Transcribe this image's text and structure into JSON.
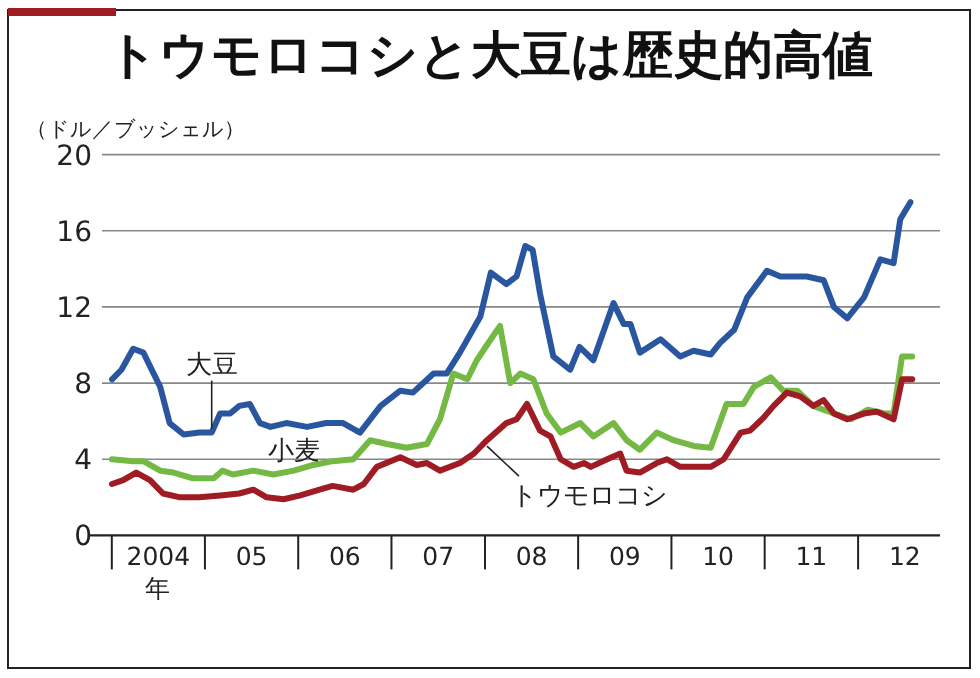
{
  "chart_data": {
    "type": "line",
    "title": "トウモロコシと大豆は歴史的高値",
    "ylabel": "（ドル／ブッシェル）",
    "xlabel": "年",
    "xlim": [
      "2004-01-01",
      "2012-11-16"
    ],
    "ylim": [
      0,
      20
    ],
    "yticks": [
      0,
      4,
      8,
      12,
      16,
      20
    ],
    "xticks": [
      {
        "value": "2004-07-01",
        "label": "2004"
      },
      {
        "value": "2005-07-01",
        "label": "05"
      },
      {
        "value": "2006-07-01",
        "label": "06"
      },
      {
        "value": "2007-07-01",
        "label": "07"
      },
      {
        "value": "2008-07-01",
        "label": "08"
      },
      {
        "value": "2009-07-01",
        "label": "09"
      },
      {
        "value": "2010-07-01",
        "label": "10"
      },
      {
        "value": "2011-07-01",
        "label": "11"
      },
      {
        "value": "2012-07-01",
        "label": "12"
      }
    ],
    "grid": "y",
    "legend": false,
    "marker": "none",
    "line_style": "solid",
    "series": [
      {
        "name": "大豆",
        "color": "#2a56a0",
        "x": [
          "2004-01-01",
          "2004-02-07",
          "2004-03-24",
          "2004-05-03",
          "2004-07-08",
          "2004-08-14",
          "2004-10-08",
          "2004-12-09",
          "2005-01-26",
          "2005-02-28",
          "2005-04-08",
          "2005-05-14",
          "2005-06-24",
          "2005-08-03",
          "2005-09-13",
          "2005-11-14",
          "2006-02-03",
          "2006-04-19",
          "2006-06-24",
          "2006-08-29",
          "2006-11-18",
          "2007-02-03",
          "2007-03-24",
          "2007-06-13",
          "2007-08-03",
          "2007-09-24",
          "2007-12-13",
          "2008-01-23",
          "2008-03-24",
          "2008-05-03",
          "2008-06-06",
          "2008-07-05",
          "2008-08-03",
          "2008-09-24",
          "2008-11-29",
          "2009-01-05",
          "2009-02-28",
          "2009-05-18",
          "2009-06-27",
          "2009-07-23",
          "2009-08-29",
          "2009-11-18",
          "2010-02-03",
          "2010-03-27",
          "2010-06-02",
          "2010-07-08",
          "2010-09-02",
          "2010-10-23",
          "2011-01-08",
          "2011-03-02",
          "2011-06-13",
          "2011-08-18",
          "2011-09-27",
          "2011-11-18",
          "2012-01-23",
          "2012-03-27",
          "2012-05-18",
          "2012-06-13",
          "2012-07-23"
        ],
        "values": [
          8.2,
          8.7,
          9.8,
          9.6,
          7.8,
          5.9,
          5.3,
          5.4,
          5.4,
          6.4,
          6.4,
          6.8,
          6.9,
          5.9,
          5.7,
          5.9,
          5.7,
          5.9,
          5.9,
          5.4,
          6.8,
          7.6,
          7.5,
          8.5,
          8.5,
          9.6,
          11.5,
          13.8,
          13.2,
          13.6,
          15.2,
          15.0,
          12.7,
          9.4,
          8.7,
          9.9,
          9.2,
          12.2,
          11.1,
          11.1,
          9.6,
          10.3,
          9.4,
          9.7,
          9.5,
          10.1,
          10.8,
          12.5,
          13.9,
          13.6,
          13.6,
          13.4,
          12.0,
          11.4,
          12.5,
          14.5,
          14.3,
          16.6,
          17.5
        ]
      },
      {
        "name": "小麦",
        "color": "#74b943",
        "x": [
          "2004-01-01",
          "2004-03-24",
          "2004-05-03",
          "2004-07-08",
          "2004-08-29",
          "2004-11-14",
          "2005-02-03",
          "2005-03-09",
          "2005-04-19",
          "2005-07-08",
          "2005-09-24",
          "2005-12-13",
          "2006-02-28",
          "2006-05-14",
          "2006-08-03",
          "2006-10-08",
          "2006-12-13",
          "2007-02-28",
          "2007-05-18",
          "2007-07-08",
          "2007-08-29",
          "2007-10-23",
          "2007-11-29",
          "2008-01-23",
          "2008-02-28",
          "2008-04-08",
          "2008-05-18",
          "2008-07-08",
          "2008-08-29",
          "2008-10-23",
          "2009-01-08",
          "2009-02-28",
          "2009-05-18",
          "2009-07-08",
          "2009-08-29",
          "2009-11-03",
          "2010-01-08",
          "2010-03-27",
          "2010-06-02",
          "2010-08-03",
          "2010-10-08",
          "2010-11-18",
          "2011-01-23",
          "2011-03-13",
          "2011-05-07",
          "2011-07-08",
          "2011-09-27",
          "2011-12-02",
          "2012-02-07",
          "2012-04-12",
          "2012-05-18",
          "2012-06-20",
          "2012-07-30"
        ],
        "values": [
          4.0,
          3.9,
          3.9,
          3.4,
          3.3,
          3.0,
          3.0,
          3.4,
          3.2,
          3.4,
          3.2,
          3.4,
          3.7,
          3.9,
          4.0,
          5.0,
          4.8,
          4.6,
          4.8,
          6.1,
          8.5,
          8.2,
          9.2,
          10.3,
          11.0,
          8.0,
          8.5,
          8.2,
          6.4,
          5.4,
          5.9,
          5.2,
          5.9,
          5.0,
          4.5,
          5.4,
          5.0,
          4.7,
          4.6,
          6.9,
          6.9,
          7.8,
          8.3,
          7.6,
          7.6,
          6.8,
          6.4,
          6.1,
          6.6,
          6.4,
          6.4,
          9.4,
          9.4
        ]
      },
      {
        "name": "トウモロコシ",
        "color": "#a01c24",
        "x": [
          "2004-01-01",
          "2004-02-14",
          "2004-04-05",
          "2004-05-29",
          "2004-07-19",
          "2004-09-24",
          "2004-12-09",
          "2005-02-28",
          "2005-05-14",
          "2005-07-08",
          "2005-08-29",
          "2005-11-03",
          "2006-01-08",
          "2006-03-24",
          "2006-05-14",
          "2006-08-03",
          "2006-09-13",
          "2006-11-03",
          "2007-02-03",
          "2007-04-08",
          "2007-05-18",
          "2007-07-08",
          "2007-09-24",
          "2007-11-18",
          "2008-01-08",
          "2008-03-24",
          "2008-05-03",
          "2008-06-13",
          "2008-08-03",
          "2008-09-13",
          "2008-10-23",
          "2008-12-13",
          "2009-01-23",
          "2009-02-18",
          "2009-04-23",
          "2009-06-13",
          "2009-07-08",
          "2009-08-29",
          "2009-11-03",
          "2009-12-13",
          "2010-02-03",
          "2010-03-27",
          "2010-06-02",
          "2010-07-23",
          "2010-09-27",
          "2010-11-03",
          "2010-12-27",
          "2011-02-03",
          "2011-03-27",
          "2011-05-18",
          "2011-07-08",
          "2011-08-18",
          "2011-09-27",
          "2011-11-18",
          "2012-01-23",
          "2012-03-13",
          "2012-05-18",
          "2012-06-20",
          "2012-07-30"
        ],
        "values": [
          2.7,
          2.9,
          3.3,
          2.9,
          2.2,
          2.0,
          2.0,
          2.1,
          2.2,
          2.4,
          2.0,
          1.9,
          2.1,
          2.4,
          2.6,
          2.4,
          2.7,
          3.6,
          4.1,
          3.7,
          3.8,
          3.4,
          3.8,
          4.3,
          5.0,
          5.9,
          6.1,
          6.9,
          5.5,
          5.2,
          4.0,
          3.6,
          3.8,
          3.6,
          4.0,
          4.3,
          3.4,
          3.3,
          3.8,
          4.0,
          3.6,
          3.6,
          3.6,
          4.0,
          5.4,
          5.5,
          6.2,
          6.8,
          7.5,
          7.3,
          6.8,
          7.1,
          6.4,
          6.1,
          6.4,
          6.5,
          6.1,
          8.2,
          8.2
        ]
      }
    ]
  }
}
